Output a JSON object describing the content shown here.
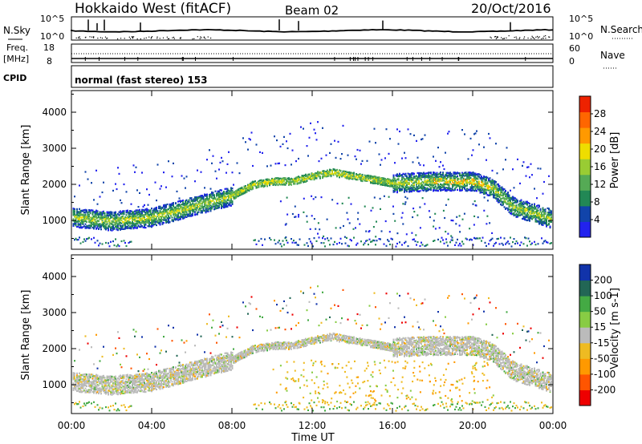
{
  "header": {
    "station": "Hokkaido West (fitACF)",
    "beam": "Beam 02",
    "date": "20/Oct/2016"
  },
  "strip": {
    "nsky_label": "N.Sky",
    "nsearch_label": "N.Search",
    "noise_ticks": [
      "10^5",
      "10^0"
    ],
    "freq_label": "Freq.",
    "freq_unit": "[MHz]",
    "freq_ticks": [
      "18",
      "8"
    ],
    "nave_label": "Nave",
    "nave_ticks": [
      "60",
      "0"
    ],
    "cpid_label": "CPID",
    "cpid_text": "normal (fast stereo) 153"
  },
  "colors": {
    "power": [
      "#2222ee",
      "#1144aa",
      "#228855",
      "#55aa55",
      "#99cc33",
      "#eedd00",
      "#ff9900",
      "#ff6600",
      "#ee2200"
    ],
    "velocity": [
      "#ee0000",
      "#ff5500",
      "#ff9900",
      "#eebb22",
      "#bbbbbb",
      "#88cc44",
      "#44aa44",
      "#226655",
      "#1133aa"
    ]
  },
  "chart_data": [
    {
      "type": "heatmap",
      "panel": "power",
      "ylabel": "Slant Range [km]",
      "yticks": [
        "1000",
        "2000",
        "3000",
        "4000"
      ],
      "ylim": [
        200,
        4600
      ],
      "xlim": [
        0,
        24
      ],
      "colorbar_label": "Power [dB]",
      "colorbar_ticks": [
        "4",
        "8",
        "12",
        "16",
        "20",
        "24",
        "28"
      ],
      "colorbar_range": [
        0,
        30
      ],
      "echo_band": {
        "hours": [
          0,
          2,
          4,
          6,
          8,
          9,
          10,
          11,
          12,
          13,
          14,
          16,
          18,
          20,
          21,
          22,
          24
        ],
        "range_km": [
          1100,
          1000,
          1100,
          1400,
          1700,
          2000,
          2100,
          2100,
          2250,
          2350,
          2250,
          2050,
          2100,
          2100,
          1900,
          1400,
          1050
        ]
      }
    },
    {
      "type": "heatmap",
      "panel": "velocity",
      "ylabel": "Slant Range [km]",
      "yticks": [
        "1000",
        "2000",
        "3000",
        "4000"
      ],
      "xticks": [
        "00:00",
        "04:00",
        "08:00",
        "12:00",
        "16:00",
        "20:00",
        "00:00"
      ],
      "xlabel": "Time UT",
      "ylim": [
        200,
        4600
      ],
      "xlim": [
        0,
        24
      ],
      "colorbar_label": "Velocity [m s-1]",
      "colorbar_ticks": [
        "200",
        "100",
        "50",
        "15",
        "-15",
        "-50",
        "-100",
        "-200"
      ],
      "colorbar_range": [
        -250,
        250
      ]
    }
  ]
}
